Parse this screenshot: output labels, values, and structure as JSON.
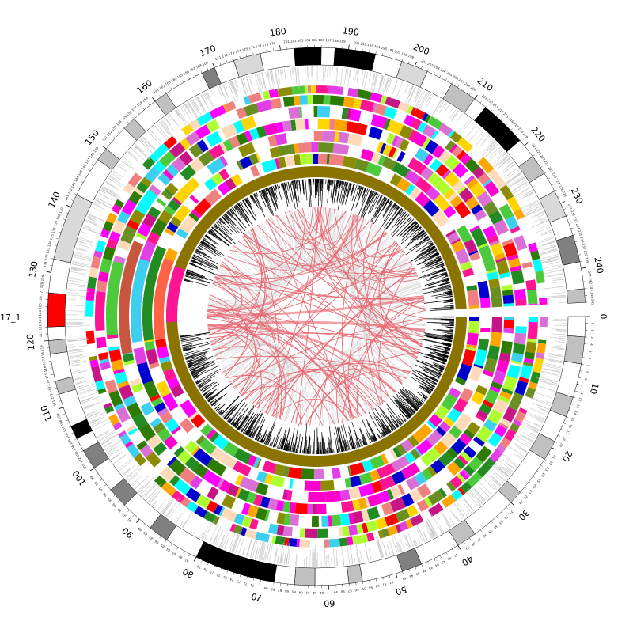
{
  "circos": {
    "chromosome_label": "17_1",
    "max_position": 245,
    "major_tick_step": 10,
    "major_ticks": [
      0,
      10,
      20,
      30,
      40,
      50,
      60,
      70,
      80,
      90,
      100,
      110,
      120,
      130,
      140,
      150,
      160,
      170,
      180,
      190,
      200,
      210,
      220,
      230,
      240
    ],
    "ideogram_bands": [
      {
        "start": 0,
        "end": 3,
        "stain": "white"
      },
      {
        "start": 3,
        "end": 7,
        "stain": "gray"
      },
      {
        "start": 7,
        "end": 12,
        "stain": "white"
      },
      {
        "start": 12,
        "end": 15,
        "stain": "gray"
      },
      {
        "start": 15,
        "end": 19,
        "stain": "white"
      },
      {
        "start": 19,
        "end": 22,
        "stain": "gray"
      },
      {
        "start": 22,
        "end": 28,
        "stain": "white"
      },
      {
        "start": 28,
        "end": 30,
        "stain": "gray"
      },
      {
        "start": 30,
        "end": 37,
        "stain": "white"
      },
      {
        "start": 37,
        "end": 40,
        "stain": "gray"
      },
      {
        "start": 40,
        "end": 46,
        "stain": "white"
      },
      {
        "start": 46,
        "end": 49,
        "stain": "darkgray"
      },
      {
        "start": 49,
        "end": 55,
        "stain": "white"
      },
      {
        "start": 55,
        "end": 57,
        "stain": "gray"
      },
      {
        "start": 57,
        "end": 62,
        "stain": "white"
      },
      {
        "start": 62,
        "end": 65,
        "stain": "gray"
      },
      {
        "start": 65,
        "end": 68,
        "stain": "white"
      },
      {
        "start": 68,
        "end": 80,
        "stain": "black"
      },
      {
        "start": 80,
        "end": 85,
        "stain": "white"
      },
      {
        "start": 85,
        "end": 88,
        "stain": "darkgray"
      },
      {
        "start": 88,
        "end": 93,
        "stain": "white"
      },
      {
        "start": 93,
        "end": 96,
        "stain": "darkgray"
      },
      {
        "start": 96,
        "end": 100,
        "stain": "white"
      },
      {
        "start": 100,
        "end": 103,
        "stain": "darkgray"
      },
      {
        "start": 103,
        "end": 105,
        "stain": "white"
      },
      {
        "start": 105,
        "end": 107,
        "stain": "black"
      },
      {
        "start": 107,
        "end": 112,
        "stain": "white"
      },
      {
        "start": 112,
        "end": 114,
        "stain": "gray"
      },
      {
        "start": 114,
        "end": 118,
        "stain": "white"
      },
      {
        "start": 118,
        "end": 120,
        "stain": "gray"
      },
      {
        "start": 120,
        "end": 122,
        "stain": "white"
      },
      {
        "start": 122,
        "end": 127,
        "stain": "red"
      },
      {
        "start": 127,
        "end": 132,
        "stain": "white"
      },
      {
        "start": 132,
        "end": 142,
        "stain": "lightgray"
      },
      {
        "start": 142,
        "end": 148,
        "stain": "white"
      },
      {
        "start": 148,
        "end": 150,
        "stain": "gray"
      },
      {
        "start": 150,
        "end": 154,
        "stain": "white"
      },
      {
        "start": 154,
        "end": 156,
        "stain": "gray"
      },
      {
        "start": 156,
        "end": 160,
        "stain": "white"
      },
      {
        "start": 160,
        "end": 162,
        "stain": "gray"
      },
      {
        "start": 162,
        "end": 168,
        "stain": "white"
      },
      {
        "start": 168,
        "end": 170,
        "stain": "darkgray"
      },
      {
        "start": 170,
        "end": 173,
        "stain": "white"
      },
      {
        "start": 173,
        "end": 177,
        "stain": "lightgray"
      },
      {
        "start": 177,
        "end": 182,
        "stain": "white"
      },
      {
        "start": 182,
        "end": 186,
        "stain": "black"
      },
      {
        "start": 186,
        "end": 188,
        "stain": "white"
      },
      {
        "start": 188,
        "end": 194,
        "stain": "black"
      },
      {
        "start": 194,
        "end": 198,
        "stain": "white"
      },
      {
        "start": 198,
        "end": 202,
        "stain": "lightgray"
      },
      {
        "start": 202,
        "end": 206,
        "stain": "white"
      },
      {
        "start": 206,
        "end": 210,
        "stain": "gray"
      },
      {
        "start": 210,
        "end": 212,
        "stain": "white"
      },
      {
        "start": 212,
        "end": 219,
        "stain": "black"
      },
      {
        "start": 219,
        "end": 222,
        "stain": "white"
      },
      {
        "start": 222,
        "end": 225,
        "stain": "gray"
      },
      {
        "start": 225,
        "end": 228,
        "stain": "white"
      },
      {
        "start": 228,
        "end": 232,
        "stain": "lightgray"
      },
      {
        "start": 232,
        "end": 235,
        "stain": "white"
      },
      {
        "start": 235,
        "end": 239,
        "stain": "darkgray"
      },
      {
        "start": 239,
        "end": 243,
        "stain": "white"
      },
      {
        "start": 243,
        "end": 245,
        "stain": "gray"
      }
    ],
    "stain_colors": {
      "white": "#ffffff",
      "lightgray": "#d9d9d9",
      "gray": "#c0c0c0",
      "darkgray": "#808080",
      "black": "#000000",
      "red": "#ff0000"
    },
    "track_palette": [
      "#4cca3c",
      "#ff00ff",
      "#e13ee6",
      "#ff00cc",
      "#ffd400",
      "#3ccfef",
      "#ff0000",
      "#2d7b00",
      "#8c8c00",
      "#c71585",
      "#ffa500",
      "#f08080",
      "#ffdab9",
      "#0000cd",
      "#6b8e23",
      "#00ffff",
      "#ff1493",
      "#228b22",
      "#da70d6",
      "#adff2f"
    ],
    "link_color": "#e8616d",
    "histogram_color": "#000000",
    "density_color": "#c8c8c8",
    "ring_base_color": "#8b7300",
    "ring_highlight_color": "#ff1493",
    "ring_highlight_color2": "#ff6347"
  }
}
